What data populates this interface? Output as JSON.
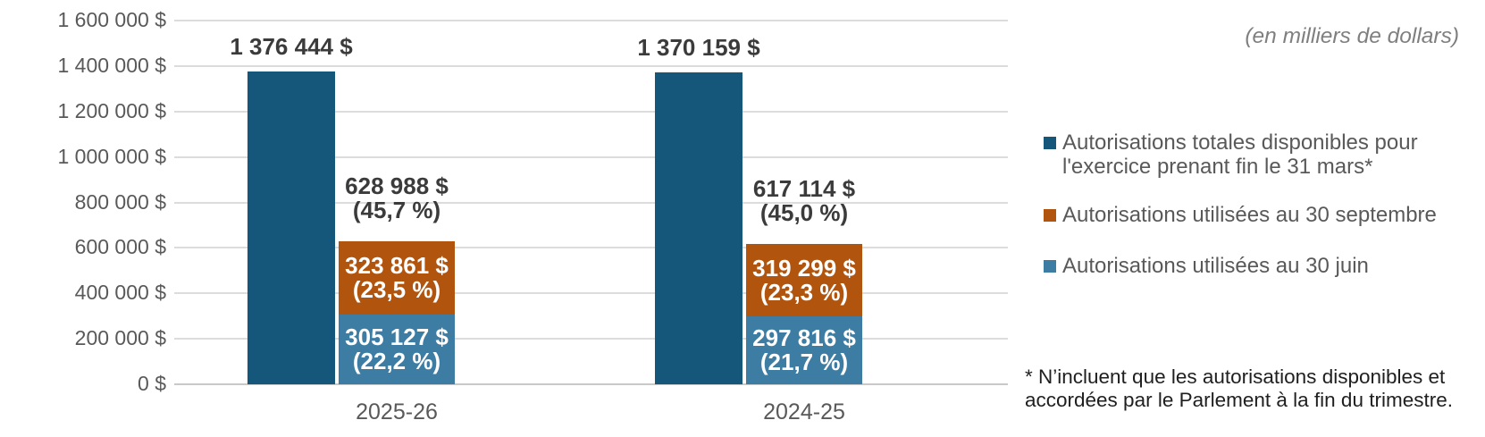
{
  "chart_data": {
    "type": "bar",
    "unit_note": "(en milliers de dollars)",
    "categories": [
      "2025-26",
      "2024-25"
    ],
    "grid": "horizontal",
    "legend_position": "right",
    "y_axis": {
      "min": 0,
      "max": 1600000,
      "tick_step": 200000,
      "tick_labels_top_to_bottom": [
        "1 600 000 $",
        "1 400 000 $",
        "1 200 000 $",
        "1 000 000 $",
        "800 000 $",
        "600 000 $",
        "400 000 $",
        "200 000 $",
        "0 $"
      ]
    },
    "series_colors": {
      "total_available": "#15567B",
      "used_september": "#B1540E",
      "used_june": "#3D7CA3"
    },
    "groups": [
      {
        "category": "2025-26",
        "total_available": {
          "value": 1376444,
          "label": "1 376 444 $"
        },
        "used_total_annotation": {
          "value": 628988,
          "label": "628 988 $",
          "pct": "(45,7 %)"
        },
        "used_september": {
          "value": 323861,
          "label": "323 861 $",
          "pct": "(23,5 %)"
        },
        "used_june": {
          "value": 305127,
          "label": "305 127 $",
          "pct": "(22,2 %)"
        }
      },
      {
        "category": "2024-25",
        "total_available": {
          "value": 1370159,
          "label": "1 370 159 $"
        },
        "used_total_annotation": {
          "value": 617114,
          "label": "617 114 $",
          "pct": "(45,0 %)"
        },
        "used_september": {
          "value": 319299,
          "label": "319 299 $",
          "pct": "(23,3 %)"
        },
        "used_june": {
          "value": 297816,
          "label": "297 816 $",
          "pct": "(21,7 %)"
        }
      }
    ],
    "legend": [
      {
        "series": "total_available",
        "color": "#15567B",
        "lines": [
          "Autorisations totales disponibles pour",
          "l'exercice prenant fin le 31 mars*"
        ]
      },
      {
        "series": "used_september",
        "color": "#B1540E",
        "lines": [
          "Autorisations utilisées au 30 septembre"
        ]
      },
      {
        "series": "used_june",
        "color": "#3D7CA3",
        "lines": [
          "Autorisations utilisées au 30 juin"
        ]
      }
    ],
    "footnote_lines": [
      "* N’incluent que les autorisations disponibles et",
      "accordées par le Parlement à la fin du trimestre."
    ]
  }
}
